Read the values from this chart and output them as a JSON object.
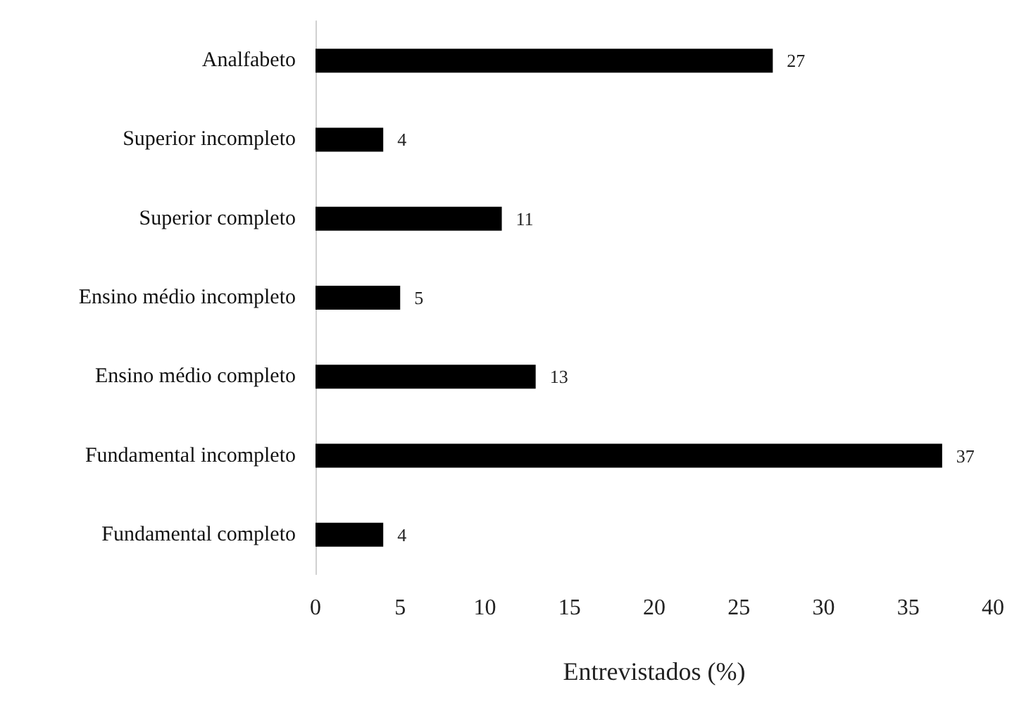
{
  "chart_data": {
    "type": "bar",
    "orientation": "horizontal",
    "categories": [
      "Analfabeto",
      "Superior incompleto",
      "Superior completo",
      "Ensino médio incompleto",
      "Ensino médio completo",
      "Fundamental incompleto",
      "Fundamental completo"
    ],
    "values": [
      27,
      4,
      11,
      5,
      13,
      37,
      4
    ],
    "color": "#000000",
    "xlim": [
      0,
      40
    ],
    "xticks": [
      0,
      5,
      10,
      15,
      20,
      25,
      30,
      35,
      40
    ],
    "xlabel": "Entrevistados (%)",
    "data_labels": true
  }
}
